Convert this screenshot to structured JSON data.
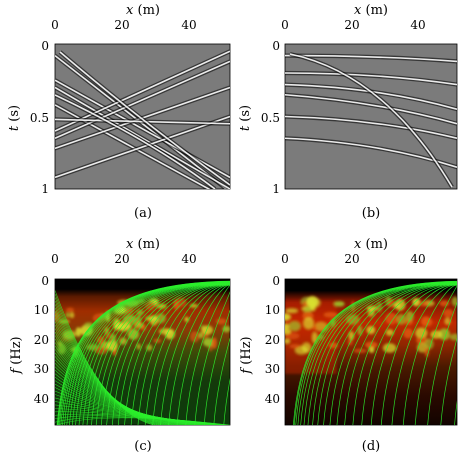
{
  "figure": {
    "panels": [
      {
        "id": "a",
        "caption": "(a)",
        "x_label": "x (m)",
        "y_label": "t (s)",
        "x_ticks": [
          "0",
          "20",
          "40"
        ],
        "y_ticks": [
          "0",
          "0.5",
          "1"
        ],
        "x_range": [
          0,
          52
        ],
        "y_range": [
          0,
          1
        ],
        "image": "seismic gather with crossing linear events",
        "colormap": "gray",
        "background": "#7a7a7a"
      },
      {
        "id": "b",
        "caption": "(b)",
        "x_label": "x (m)",
        "y_label": "t (s)",
        "x_ticks": [
          "0",
          "20",
          "40"
        ],
        "y_ticks": [
          "0",
          "0.5",
          "1"
        ],
        "x_range": [
          0,
          52
        ],
        "y_range": [
          0,
          1
        ],
        "image": "seismic gather with curved hyperbolic-like events",
        "colormap": "gray",
        "background": "#7a7a7a"
      },
      {
        "id": "c",
        "caption": "(c)",
        "x_label": "x (m)",
        "y_label": "f (Hz)",
        "x_ticks": [
          "0",
          "20",
          "40"
        ],
        "y_ticks": [
          "0",
          "10",
          "20",
          "30",
          "40"
        ],
        "x_range": [
          0,
          52
        ],
        "y_range": [
          0,
          50
        ],
        "image": "frequency-space amplitude with dense green curve family",
        "colormap": "black-red-yellow",
        "curve_color": "#33ff33"
      },
      {
        "id": "d",
        "caption": "(d)",
        "x_label": "x (m)",
        "y_label": "f (Hz)",
        "x_ticks": [
          "0",
          "20",
          "40"
        ],
        "y_ticks": [
          "0",
          "10",
          "20",
          "30",
          "40"
        ],
        "x_range": [
          0,
          52
        ],
        "y_range": [
          0,
          50
        ],
        "image": "frequency-space amplitude with sparser green curve family",
        "colormap": "black-red-yellow",
        "curve_color": "#33ff33"
      }
    ]
  }
}
